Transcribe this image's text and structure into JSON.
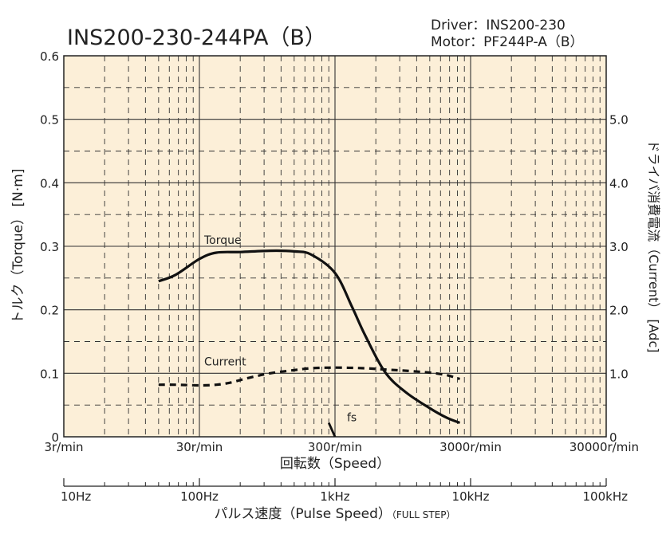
{
  "chart_data": {
    "type": "line",
    "title": "INS200-230-244PA（B）",
    "info": {
      "driver_label": "Driver：",
      "driver_value": "INS200-230",
      "motor_label": "Motor：",
      "motor_value": "PF244P-A（B）"
    },
    "x_scale": "log",
    "x_range": [
      3,
      30000
    ],
    "x_ticks": [
      {
        "value": 3,
        "label": "3r/min"
      },
      {
        "value": 30,
        "label": "30r/min"
      },
      {
        "value": 300,
        "label": "300r/min"
      },
      {
        "value": 3000,
        "label": "3000r/min"
      },
      {
        "value": 30000,
        "label": "30000r/min"
      }
    ],
    "xlabel": "回転数（Speed）",
    "y_left": {
      "label": "トルク（Torque） [N·m]",
      "range": [
        0,
        0.6
      ],
      "ticks": [
        "0",
        "0.1",
        "0.2",
        "0.3",
        "0.4",
        "0.5",
        "0.6"
      ]
    },
    "y_right": {
      "label": "ドライバ消費電流（Current） [Adc]",
      "range": [
        0,
        6
      ],
      "ticks": [
        {
          "value": 0,
          "label": "0"
        },
        {
          "value": 1,
          "label": "1.0"
        },
        {
          "value": 2,
          "label": "2.0"
        },
        {
          "value": 3,
          "label": "3.0"
        },
        {
          "value": 4,
          "label": "4.0"
        },
        {
          "value": 5,
          "label": "5.0"
        }
      ]
    },
    "pulse_axis": {
      "label": "パルス速度（Pulse Speed）",
      "label_suffix": "（FULL STEP）",
      "range": [
        10,
        100000
      ],
      "ticks": [
        {
          "value": 10,
          "label": "10Hz"
        },
        {
          "value": 100,
          "label": "100Hz"
        },
        {
          "value": 1000,
          "label": "1kHz"
        },
        {
          "value": 10000,
          "label": "10kHz"
        },
        {
          "value": 100000,
          "label": "100kHz"
        }
      ]
    },
    "series": [
      {
        "name": "Torque",
        "axis": "left",
        "style": "solid",
        "x": [
          15,
          20,
          30,
          40,
          60,
          100,
          150,
          200,
          300,
          400,
          500,
          700,
          1000,
          1500,
          2000,
          2500
        ],
        "y": [
          0.245,
          0.255,
          0.28,
          0.29,
          0.291,
          0.293,
          0.292,
          0.287,
          0.258,
          0.205,
          0.16,
          0.102,
          0.07,
          0.045,
          0.03,
          0.022
        ]
      },
      {
        "name": "Current",
        "axis": "right",
        "style": "dashed",
        "x": [
          15,
          20,
          30,
          40,
          50,
          70,
          100,
          150,
          200,
          300,
          500,
          700,
          1000,
          1500,
          2000,
          2500
        ],
        "y": [
          0.82,
          0.82,
          0.81,
          0.82,
          0.85,
          0.93,
          1.0,
          1.05,
          1.08,
          1.09,
          1.08,
          1.06,
          1.04,
          1.01,
          0.97,
          0.91
        ]
      }
    ],
    "fs": {
      "label": "fs",
      "x": [
        270,
        300
      ],
      "y": [
        0.022,
        0.0
      ]
    },
    "colors": {
      "plot_background": "#fcefd8",
      "grid": "#333333",
      "line": "#111111"
    }
  }
}
